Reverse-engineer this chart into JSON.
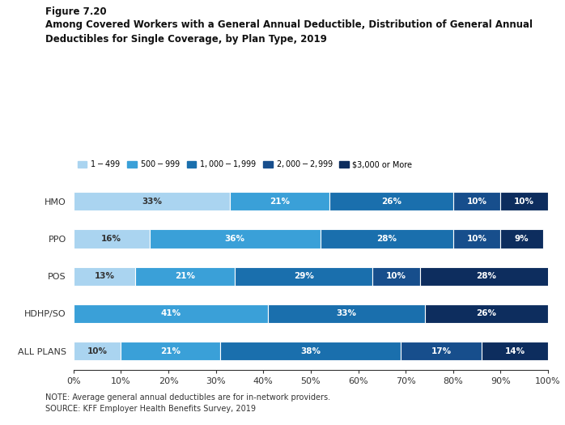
{
  "title_line1": "Figure 7.20",
  "title_line2": "Among Covered Workers with a General Annual Deductible, Distribution of General Annual",
  "title_line3": "Deductibles for Single Coverage, by Plan Type, 2019",
  "note": "NOTE: Average general annual deductibles are for in-network providers.",
  "source": "SOURCE: KFF Employer Health Benefits Survey, 2019",
  "plan_types": [
    "HMO",
    "PPO",
    "POS",
    "HDHP/SO",
    "ALL PLANS"
  ],
  "categories": [
    "$1 - $499",
    "$500 - $999",
    "$1,000 - $1,999",
    "$2,000 - $2,999",
    "$3,000 or More"
  ],
  "colors": [
    "#aad4f0",
    "#3aa0d8",
    "#1a6fad",
    "#174e8c",
    "#0d2d5e"
  ],
  "data": {
    "HMO": [
      33,
      21,
      26,
      10,
      10
    ],
    "PPO": [
      16,
      36,
      28,
      10,
      9
    ],
    "POS": [
      13,
      21,
      29,
      10,
      28
    ],
    "HDHP/SO": [
      0,
      41,
      33,
      0,
      26
    ],
    "ALL PLANS": [
      10,
      21,
      38,
      17,
      14
    ]
  },
  "label_colors": {
    "HMO": [
      "#333333",
      "#ffffff",
      "#ffffff",
      "#ffffff",
      "#ffffff"
    ],
    "PPO": [
      "#333333",
      "#ffffff",
      "#ffffff",
      "#ffffff",
      "#ffffff"
    ],
    "POS": [
      "#333333",
      "#ffffff",
      "#ffffff",
      "#ffffff",
      "#ffffff"
    ],
    "HDHP/SO": [
      "#ffffff",
      "#ffffff",
      "#ffffff",
      "#ffffff",
      "#ffffff"
    ],
    "ALL PLANS": [
      "#333333",
      "#ffffff",
      "#ffffff",
      "#ffffff",
      "#ffffff"
    ]
  },
  "bar_height": 0.5,
  "xlim": [
    0,
    100
  ],
  "background_color": "#ffffff"
}
